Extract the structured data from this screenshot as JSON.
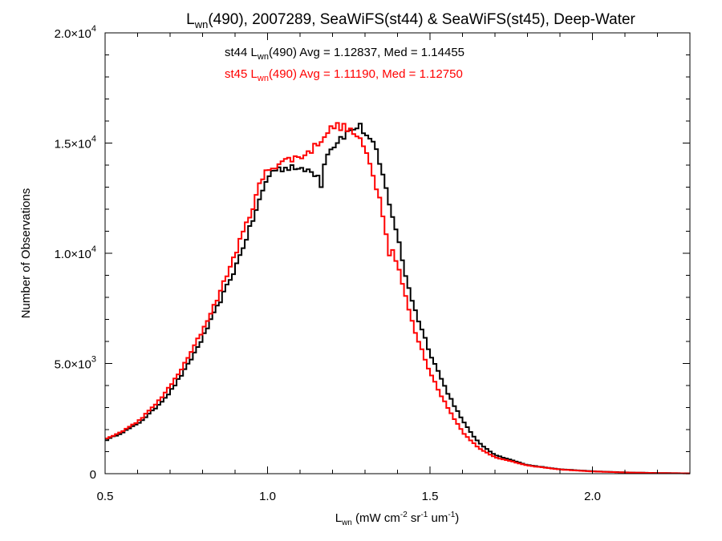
{
  "chart_data": {
    "type": "line",
    "step": true,
    "title": {
      "base": "L",
      "sub": "wn",
      "rest": "(490), 2007289, SeaWiFS(st44) & SeaWiFS(st45), Deep-Water"
    },
    "xlabel": {
      "base": "L",
      "sub": "wn",
      "p1": " (mW cm",
      "sup1": "-2",
      "p2": " sr",
      "sup2": "-1",
      "p3": " um",
      "sup3": "-1",
      "p4": ")"
    },
    "ylabel": "Number of Observations",
    "xlim": [
      0.5,
      2.3
    ],
    "ylim": [
      0,
      20000
    ],
    "x_ticks": [
      {
        "value": 0.5,
        "label": "0.5"
      },
      {
        "value": 1.0,
        "label": "1.0"
      },
      {
        "value": 1.5,
        "label": "1.5"
      },
      {
        "value": 2.0,
        "label": "2.0"
      }
    ],
    "y_ticks": [
      {
        "value": 0,
        "mant": "0",
        "times": "",
        "exp": ""
      },
      {
        "value": 5000,
        "mant": "5.0",
        "times": "×10",
        "exp": "3"
      },
      {
        "value": 10000,
        "mant": "1.0",
        "times": "×10",
        "exp": "4"
      },
      {
        "value": 15000,
        "mant": "1.5",
        "times": "×10",
        "exp": "4"
      },
      {
        "value": 20000,
        "mant": "2.0",
        "times": "×10",
        "exp": "4"
      }
    ],
    "grid": false,
    "legend_position": "top-center",
    "series": [
      {
        "name": "st44",
        "color": "#000000",
        "legend": {
          "pre": "st44 L",
          "sub": "wn",
          "post": "(490) Avg = 1.12837, Med = 1.14455"
        },
        "points": [
          [
            0.5,
            1500
          ],
          [
            0.55,
            1850
          ],
          [
            0.6,
            2250
          ],
          [
            0.65,
            2900
          ],
          [
            0.7,
            3700
          ],
          [
            0.75,
            4800
          ],
          [
            0.8,
            6150
          ],
          [
            0.85,
            7700
          ],
          [
            0.9,
            9300
          ],
          [
            0.95,
            11300
          ],
          [
            0.98,
            12600
          ],
          [
            1.0,
            13450
          ],
          [
            1.02,
            13800
          ],
          [
            1.05,
            13850
          ],
          [
            1.08,
            14000
          ],
          [
            1.1,
            13700
          ],
          [
            1.12,
            13800
          ],
          [
            1.15,
            13600
          ],
          [
            1.17,
            13800
          ],
          [
            1.18,
            14550
          ],
          [
            1.2,
            14800
          ],
          [
            1.22,
            15200
          ],
          [
            1.25,
            15500
          ],
          [
            1.27,
            15700
          ],
          [
            1.28,
            15800
          ],
          [
            1.3,
            15500
          ],
          [
            1.33,
            14800
          ],
          [
            1.35,
            13800
          ],
          [
            1.37,
            12600
          ],
          [
            1.4,
            10800
          ],
          [
            1.42,
            9300
          ],
          [
            1.45,
            7600
          ],
          [
            1.5,
            5500
          ],
          [
            1.55,
            3800
          ],
          [
            1.6,
            2400
          ],
          [
            1.65,
            1400
          ],
          [
            1.7,
            850
          ],
          [
            1.8,
            390
          ],
          [
            1.9,
            200
          ],
          [
            2.0,
            110
          ],
          [
            2.1,
            60
          ],
          [
            2.2,
            30
          ],
          [
            2.3,
            15
          ]
        ],
        "notches": [
          {
            "x": 1.165,
            "low": 13000
          }
        ]
      },
      {
        "name": "st45",
        "color": "#ff0000",
        "legend": {
          "pre": "st45 L",
          "sub": "wn",
          "post": "(490) Avg = 1.11190, Med = 1.12750"
        },
        "points": [
          [
            0.5,
            1550
          ],
          [
            0.55,
            1900
          ],
          [
            0.6,
            2350
          ],
          [
            0.65,
            3050
          ],
          [
            0.7,
            3950
          ],
          [
            0.75,
            5100
          ],
          [
            0.8,
            6500
          ],
          [
            0.85,
            8100
          ],
          [
            0.9,
            9950
          ],
          [
            0.95,
            11900
          ],
          [
            0.97,
            12900
          ],
          [
            1.0,
            13800
          ],
          [
            1.03,
            14050
          ],
          [
            1.05,
            14200
          ],
          [
            1.08,
            14300
          ],
          [
            1.1,
            14400
          ],
          [
            1.12,
            14500
          ],
          [
            1.15,
            14900
          ],
          [
            1.17,
            15300
          ],
          [
            1.2,
            15700
          ],
          [
            1.22,
            15800
          ],
          [
            1.25,
            15600
          ],
          [
            1.27,
            15400
          ],
          [
            1.3,
            14700
          ],
          [
            1.32,
            13900
          ],
          [
            1.35,
            12200
          ],
          [
            1.37,
            10600
          ],
          [
            1.4,
            9600
          ],
          [
            1.42,
            8300
          ],
          [
            1.45,
            6600
          ],
          [
            1.5,
            4600
          ],
          [
            1.55,
            3100
          ],
          [
            1.6,
            1900
          ],
          [
            1.65,
            1150
          ],
          [
            1.7,
            750
          ],
          [
            1.8,
            370
          ],
          [
            1.9,
            190
          ],
          [
            2.0,
            100
          ],
          [
            2.1,
            55
          ],
          [
            2.2,
            28
          ],
          [
            2.3,
            14
          ]
        ],
        "notches": [
          {
            "x": 1.375,
            "low": 9900
          }
        ]
      }
    ]
  }
}
